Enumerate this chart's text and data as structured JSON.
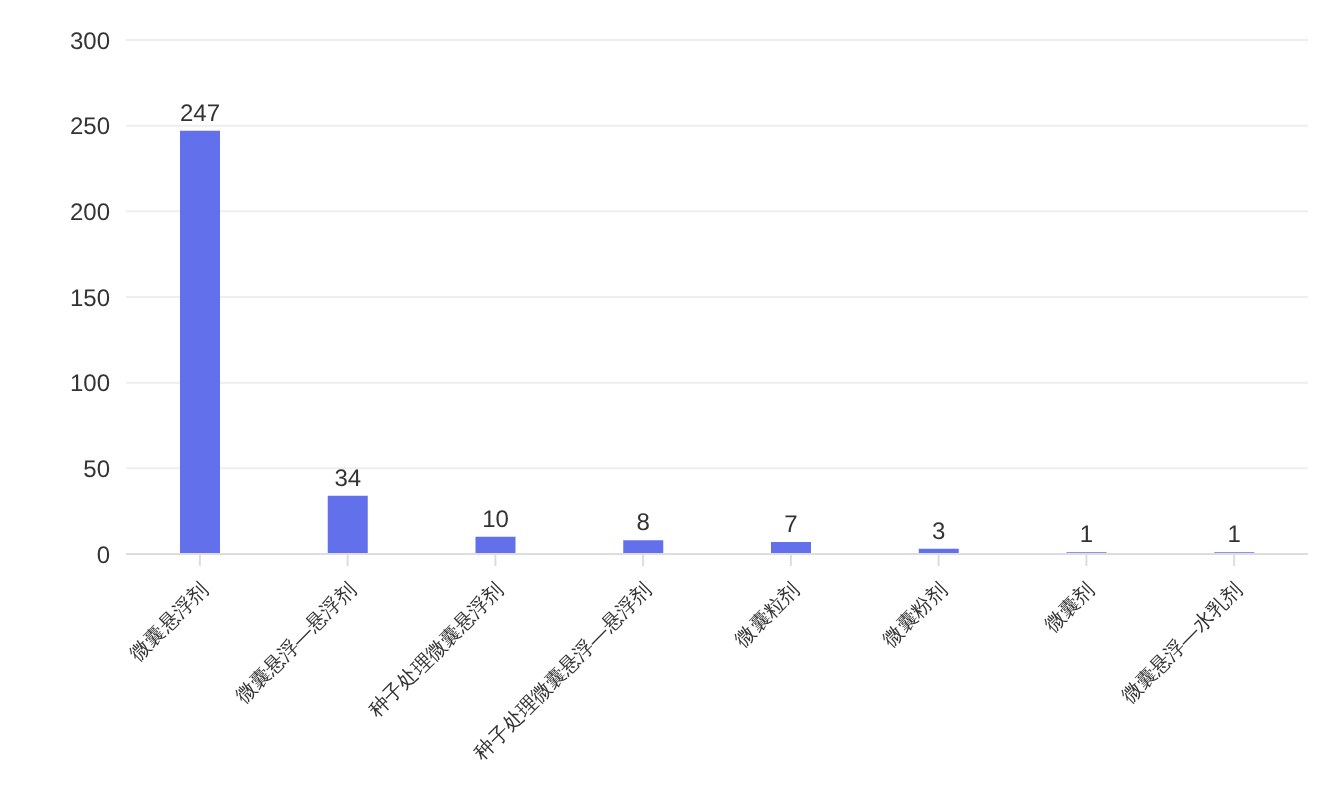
{
  "chart_data": {
    "type": "bar",
    "categories": [
      "微囊悬浮剂",
      "微囊悬浮—悬浮剂",
      "种子处理微囊悬浮剂",
      "种子处理微囊悬浮—悬浮剂",
      "微囊粒剂",
      "微囊粉剂",
      "微囊剂",
      "微囊悬浮—水乳剂"
    ],
    "values": [
      247,
      34,
      10,
      8,
      7,
      3,
      1,
      1
    ],
    "color": "#6271eb",
    "ylim": [
      0,
      300
    ],
    "yticks": [
      0,
      50,
      100,
      150,
      200,
      250,
      300
    ],
    "grid": "y",
    "data_labels": true
  }
}
